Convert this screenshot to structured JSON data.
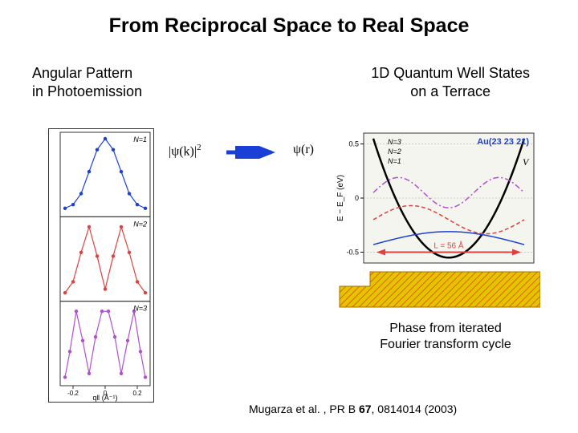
{
  "title": "From  Reciprocal Space to Real Space",
  "subtitle_left_l1": "Angular Pattern",
  "subtitle_left_l2": "in Photoemission",
  "subtitle_right_l1": "1D Quantum Well States",
  "subtitle_right_l2": "on a Terrace",
  "psi_k_label": "|ψ(k)|²",
  "psi_r_label": "ψ(r)",
  "phase_l1": "Phase from iterated",
  "phase_l2": "Fourier transform cycle",
  "citation_pre": "Mugarza et al. , PR B ",
  "citation_vol": "67",
  "citation_post": ", 0814014 (2003)",
  "left_figure": {
    "x_ticks": [
      -0.2,
      0,
      0.2
    ],
    "x_label": "q‖ (Å⁻¹)",
    "panels": [
      {
        "N_label": "N=1",
        "marker_color": "#1a3fd6",
        "line_color": "#1a3fd6",
        "x": [
          -0.25,
          -0.2,
          -0.15,
          -0.1,
          -0.05,
          0,
          0.05,
          0.1,
          0.15,
          0.2,
          0.25
        ],
        "y": [
          0.05,
          0.1,
          0.25,
          0.55,
          0.85,
          1.0,
          0.85,
          0.55,
          0.25,
          0.1,
          0.05
        ]
      },
      {
        "N_label": "N=2",
        "marker_color": "#e04040",
        "line_color": "#e04040",
        "x": [
          -0.25,
          -0.2,
          -0.15,
          -0.1,
          -0.05,
          0,
          0.05,
          0.1,
          0.15,
          0.2,
          0.25
        ],
        "y": [
          0.05,
          0.2,
          0.6,
          0.95,
          0.55,
          0.1,
          0.55,
          0.95,
          0.6,
          0.2,
          0.05
        ]
      },
      {
        "N_label": "N=3",
        "marker_color": "#b050d0",
        "line_color": "#b050d0",
        "x": [
          -0.25,
          -0.22,
          -0.18,
          -0.14,
          -0.1,
          -0.06,
          -0.02,
          0.02,
          0.06,
          0.1,
          0.14,
          0.18,
          0.22,
          0.25
        ],
        "y": [
          0.05,
          0.4,
          0.95,
          0.55,
          0.1,
          0.6,
          0.95,
          0.95,
          0.6,
          0.1,
          0.55,
          0.95,
          0.4,
          0.05
        ]
      }
    ],
    "grid_color": "#333333",
    "background": "#ffffff",
    "marker_radius": 2.2,
    "line_width": 1.2
  },
  "right_figure": {
    "au_label": "Au(23 23 21)",
    "au_label_color": "#1a3fd6",
    "V_label": "V",
    "V_label_style": "italic",
    "y_label": "E − E_F (eV)",
    "y_ticks": [
      -0.5,
      0,
      0.5
    ],
    "L_label": "L = 56 Å",
    "L_color": "#e04040",
    "step_color": "#e6c200",
    "step_hatch_color": "#d46a00",
    "potential_color": "#000000",
    "potential_line_width": 2.5,
    "gridline_color": "#bdbdbd",
    "wavefunctions": [
      {
        "N": 1,
        "N_label": "N=1",
        "color": "#1a3fd6",
        "style": "solid",
        "baseline": -0.43,
        "amp": 0.12,
        "lobes": 1
      },
      {
        "N": 2,
        "N_label": "N=2",
        "color": "#e04040",
        "style": "dashed",
        "baseline": -0.2,
        "amp": 0.13,
        "lobes": 2
      },
      {
        "N": 3,
        "N_label": "N=3",
        "color": "#b050d0",
        "style": "dashdot",
        "baseline": 0.05,
        "amp": 0.14,
        "lobes": 3
      }
    ],
    "chart_bg": "#f5f5f0",
    "arrow_color": "#e04040"
  },
  "arrow_color": "#1a3fd6"
}
